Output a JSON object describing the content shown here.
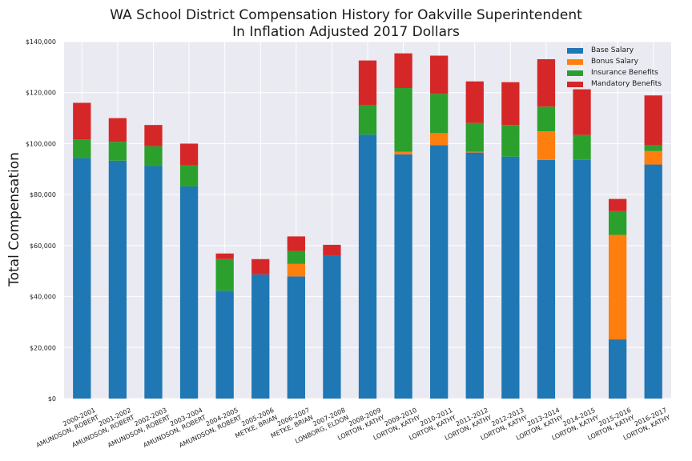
{
  "colors": {
    "plot_background": "#eaeaf2",
    "gridline": "#ffffff",
    "base": "#1f77b4",
    "bonus": "#ff7f0e",
    "insurance": "#2ca02c",
    "mandatory": "#d62728"
  },
  "chart_data": {
    "type": "bar",
    "stacked": true,
    "title": "WA School District Compensation History for Oakville Superintendent",
    "subtitle": "In Inflation Adjusted 2017 Dollars",
    "xlabel": "",
    "ylabel": "Total Compensation",
    "ylim": [
      0,
      140000
    ],
    "yticks": [
      0,
      20000,
      40000,
      60000,
      80000,
      100000,
      120000,
      140000
    ],
    "ytick_labels": [
      "$0",
      "$20,000",
      "$40,000",
      "$60,000",
      "$80,000",
      "$100,000",
      "$120,000",
      "$140,000"
    ],
    "grid": true,
    "legend_position": "top-right",
    "categories": [
      [
        "2000-2001",
        "AMUNDSON, ROBERT"
      ],
      [
        "2001-2002",
        "AMUNDSON, ROBERT"
      ],
      [
        "2002-2003",
        "AMUNDSON, ROBERT"
      ],
      [
        "2003-2004",
        "AMUNDSON, ROBERT"
      ],
      [
        "2004-2005",
        "AMUNDSON, ROBERT"
      ],
      [
        "2005-2006",
        "METKE, BRIAN"
      ],
      [
        "2006-2007",
        "METKE, BRIAN"
      ],
      [
        "2007-2008",
        "LONBORG, ELDON"
      ],
      [
        "2008-2009",
        "LORTON, KATHY"
      ],
      [
        "2009-2010",
        "LORTON, KATHY"
      ],
      [
        "2010-2011",
        "LORTON, KATHY"
      ],
      [
        "2011-2012",
        "LORTON, KATHY"
      ],
      [
        "2012-2013",
        "LORTON, KATHY"
      ],
      [
        "2013-2014",
        "LORTON, KATHY"
      ],
      [
        "2014-2015",
        "LORTON, KATHY"
      ],
      [
        "2015-2016",
        "LORTON, KATHY"
      ],
      [
        "2016-2017",
        "LORTON, KATHY"
      ]
    ],
    "series": [
      {
        "name": "Base Salary",
        "color_key": "base",
        "values": [
          94300,
          93300,
          91200,
          83200,
          42300,
          48700,
          47900,
          56000,
          103500,
          95800,
          99400,
          96500,
          94900,
          93600,
          93600,
          23200,
          91800
        ]
      },
      {
        "name": "Bonus Salary",
        "color_key": "bonus",
        "values": [
          0,
          0,
          0,
          0,
          0,
          0,
          4900,
          0,
          0,
          1000,
          4700,
          300,
          0,
          11200,
          0,
          41000,
          5300
        ]
      },
      {
        "name": "Insurance Benefits",
        "color_key": "insurance",
        "values": [
          7300,
          7400,
          7800,
          8200,
          12400,
          0,
          5100,
          0,
          11700,
          25000,
          15400,
          11300,
          12400,
          9700,
          9800,
          9300,
          2200
        ]
      },
      {
        "name": "Mandatory Benefits",
        "color_key": "mandatory",
        "values": [
          14400,
          9300,
          8300,
          8600,
          2200,
          6000,
          5700,
          4300,
          17400,
          13600,
          15000,
          16300,
          16800,
          18600,
          17900,
          4800,
          19600
        ]
      }
    ]
  }
}
